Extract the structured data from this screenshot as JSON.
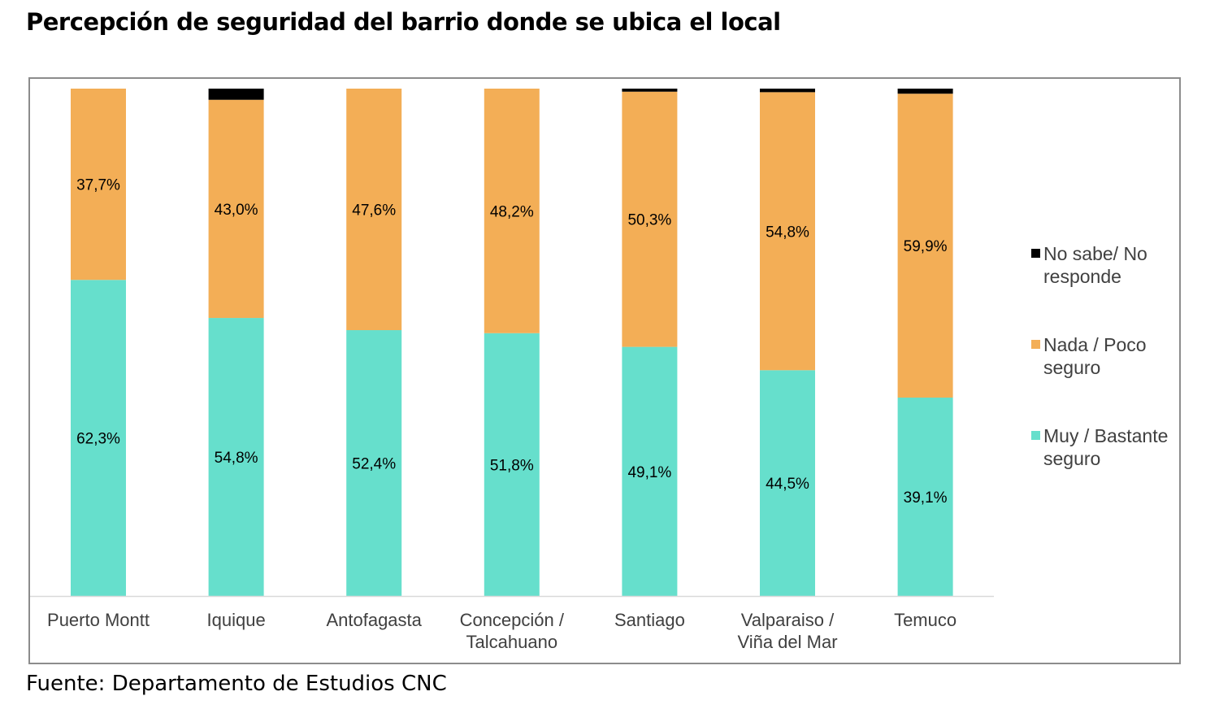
{
  "title": "Percepción de seguridad del barrio donde se ubica el local",
  "source": "Fuente: Departamento de Estudios CNC",
  "chart_data": {
    "type": "bar",
    "stacked": true,
    "normalized_100": true,
    "categories": [
      [
        "Puerto Montt"
      ],
      [
        "Iquique"
      ],
      [
        "Antofagasta"
      ],
      [
        "Concepción /",
        "Talcahuano"
      ],
      [
        "Santiago"
      ],
      [
        "Valparaiso /",
        "Viña del Mar"
      ],
      [
        "Temuco"
      ]
    ],
    "series": [
      {
        "name": "Muy / Bastante seguro",
        "legend_lines": [
          "Muy / Bastante",
          "seguro"
        ],
        "color": "#66dfcc",
        "values": [
          62.3,
          54.8,
          52.4,
          51.8,
          49.1,
          44.5,
          39.1
        ],
        "labels": [
          "62,3%",
          "54,8%",
          "52,4%",
          "51,8%",
          "49,1%",
          "44,5%",
          "39,1%"
        ]
      },
      {
        "name": "Nada / Poco seguro",
        "legend_lines": [
          "Nada / Poco",
          "seguro"
        ],
        "color": "#f3ae56",
        "values": [
          37.7,
          43.0,
          47.6,
          48.2,
          50.3,
          54.8,
          59.9
        ],
        "labels": [
          "37,7%",
          "43,0%",
          "47,6%",
          "48,2%",
          "50,3%",
          "54,8%",
          "59,9%"
        ]
      },
      {
        "name": "No sabe/ No responde",
        "legend_lines": [
          "No sabe/ No",
          "responde"
        ],
        "color": "#000000",
        "values": [
          0,
          2.2,
          0,
          0,
          0.6,
          0.7,
          1.0
        ],
        "labels": []
      }
    ],
    "ylim": [
      0,
      100
    ],
    "legend_position": "right",
    "grid": false
  }
}
